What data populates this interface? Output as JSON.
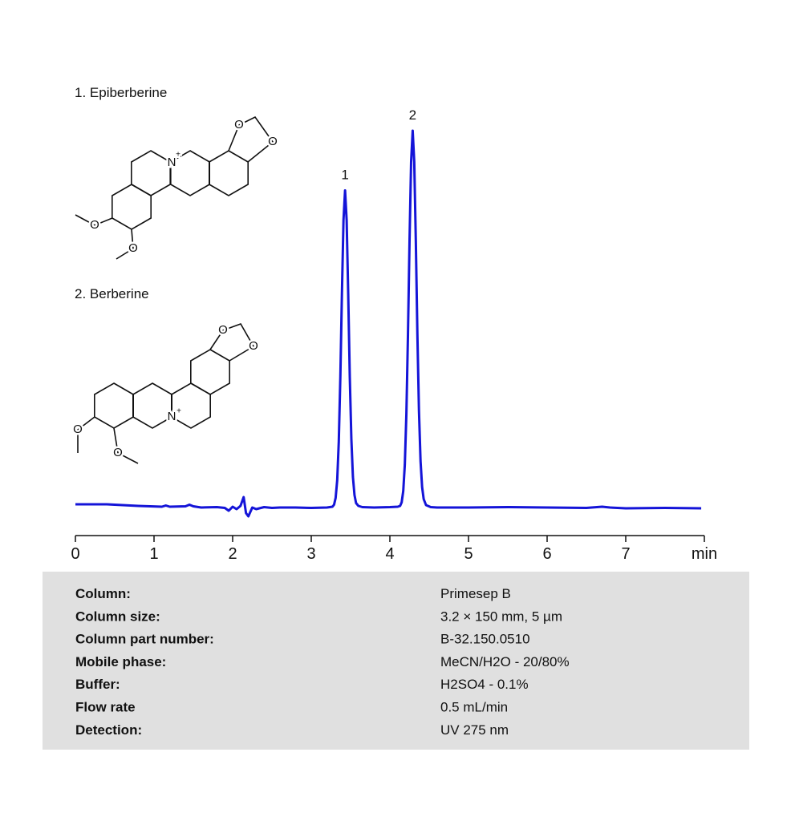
{
  "chart_data": {
    "type": "line",
    "x": [
      0,
      0.4,
      0.8,
      1.1,
      1.15,
      1.2,
      1.4,
      1.45,
      1.5,
      1.6,
      1.8,
      1.9,
      1.95,
      2.0,
      2.05,
      2.1,
      2.14,
      2.17,
      2.2,
      2.25,
      2.3,
      2.4,
      2.5,
      2.6,
      2.8,
      3.0,
      3.2,
      3.27,
      3.29,
      3.31,
      3.33,
      3.35,
      3.37,
      3.39,
      3.41,
      3.43,
      3.45,
      3.47,
      3.49,
      3.51,
      3.53,
      3.55,
      3.57,
      3.6,
      3.65,
      3.8,
      4.0,
      4.1,
      4.13,
      4.15,
      4.17,
      4.19,
      4.21,
      4.23,
      4.25,
      4.27,
      4.29,
      4.31,
      4.33,
      4.35,
      4.37,
      4.39,
      4.41,
      4.43,
      4.46,
      4.52,
      4.6,
      5.0,
      5.5,
      6.0,
      6.5,
      6.7,
      6.8,
      7.0,
      7.5,
      7.96
    ],
    "series": [
      {
        "color": "#1414d8",
        "values": [
          4.2,
          4.2,
          3.8,
          3.6,
          3.9,
          3.6,
          3.7,
          4.1,
          3.7,
          3.4,
          3.5,
          3.3,
          2.6,
          3.6,
          3.0,
          3.8,
          6.0,
          2.0,
          1.2,
          3.4,
          3.0,
          3.5,
          3.3,
          3.4,
          3.4,
          3.3,
          3.4,
          3.6,
          4.1,
          5.8,
          10.2,
          19.8,
          36.0,
          56.7,
          75.1,
          82.5,
          75.1,
          56.7,
          36.0,
          20.5,
          11.0,
          6.5,
          4.5,
          3.8,
          3.5,
          3.4,
          3.5,
          3.6,
          3.8,
          4.7,
          7.5,
          14.1,
          26.8,
          46.5,
          69.9,
          89.6,
          97.4,
          89.6,
          69.9,
          46.5,
          27.5,
          15.0,
          8.5,
          5.5,
          4.0,
          3.5,
          3.4,
          3.4,
          3.5,
          3.4,
          3.3,
          3.6,
          3.4,
          3.2,
          3.3,
          3.2
        ]
      }
    ],
    "xlim": [
      0,
      8
    ],
    "xticks": [
      0,
      1,
      2,
      3,
      4,
      5,
      6,
      7,
      {
        "value": 8,
        "label": "min"
      }
    ],
    "ylim": [
      0,
      100
    ],
    "peaks": [
      {
        "label": "1",
        "x": 3.43
      },
      {
        "label": "2",
        "x": 4.29
      }
    ]
  },
  "compounds": [
    {
      "name": "1. Epiberberine",
      "atoms": [
        "O",
        "O",
        "N",
        "+",
        "O",
        "O"
      ]
    },
    {
      "name": "2. Berberine",
      "atoms": [
        "O",
        "O",
        "N",
        "+",
        "O",
        "O"
      ]
    }
  ],
  "info": {
    "rows": [
      [
        "Column:",
        "Primesep B"
      ],
      [
        "Column size:",
        "3.2 × 150 mm, 5 µm"
      ],
      [
        "Column part number:",
        "B-32.150.0510"
      ],
      [
        "Mobile phase:",
        "MeCN/H2O - 20/80%"
      ],
      [
        "Buffer:",
        "H2SO4 - 0.1%"
      ],
      [
        "Flow rate",
        "0.5 mL/min"
      ],
      [
        "Detection:",
        "UV 275 nm"
      ]
    ]
  }
}
